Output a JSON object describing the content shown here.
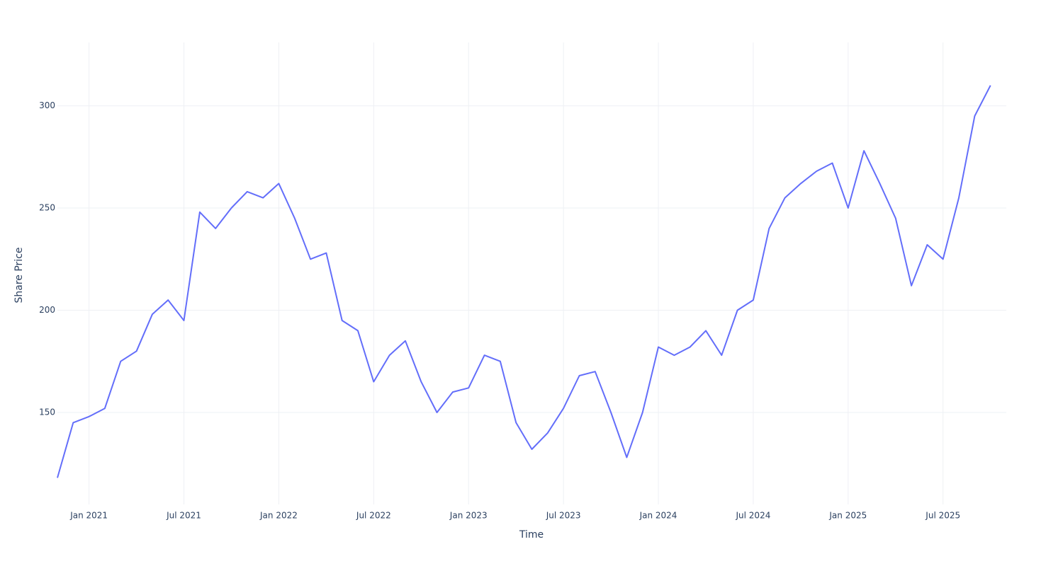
{
  "chart_data": {
    "type": "line",
    "x_label": "Time",
    "y_label": "Share Price",
    "x": [
      "2020-11",
      "2020-12",
      "2021-01",
      "2021-02",
      "2021-03",
      "2021-04",
      "2021-05",
      "2021-06",
      "2021-07",
      "2021-08",
      "2021-09",
      "2021-10",
      "2021-11",
      "2021-12",
      "2022-01",
      "2022-02",
      "2022-03",
      "2022-04",
      "2022-05",
      "2022-06",
      "2022-07",
      "2022-08",
      "2022-09",
      "2022-10",
      "2022-11",
      "2022-12",
      "2023-01",
      "2023-02",
      "2023-03",
      "2023-04",
      "2023-05",
      "2023-06",
      "2023-07",
      "2023-08",
      "2023-09",
      "2023-10",
      "2023-11",
      "2023-12",
      "2024-01",
      "2024-02",
      "2024-03",
      "2024-04",
      "2024-05",
      "2024-06",
      "2024-07",
      "2024-08",
      "2024-09",
      "2024-10",
      "2024-11",
      "2024-12",
      "2025-01",
      "2025-02",
      "2025-03",
      "2025-04",
      "2025-05",
      "2025-06",
      "2025-07",
      "2025-08",
      "2025-09",
      "2025-10"
    ],
    "series": [
      {
        "color": "#636efa",
        "values": [
          118,
          145,
          148,
          152,
          175,
          180,
          198,
          205,
          195,
          248,
          240,
          250,
          258,
          255,
          262,
          245,
          225,
          228,
          195,
          190,
          165,
          178,
          185,
          165,
          150,
          160,
          162,
          178,
          175,
          145,
          132,
          140,
          152,
          168,
          170,
          150,
          128,
          150,
          182,
          178,
          182,
          190,
          178,
          200,
          205,
          240,
          255,
          262,
          268,
          272,
          250,
          278,
          262,
          245,
          212,
          232,
          225,
          255,
          295,
          310
        ]
      }
    ],
    "xlim": [
      "2020-11",
      "2025-11"
    ],
    "xticks": [
      {
        "value": "2021-01",
        "label": "Jan 2021"
      },
      {
        "value": "2021-07",
        "label": "Jul 2021"
      },
      {
        "value": "2022-01",
        "label": "Jan 2022"
      },
      {
        "value": "2022-07",
        "label": "Jul 2022"
      },
      {
        "value": "2023-01",
        "label": "Jan 2023"
      },
      {
        "value": "2023-07",
        "label": "Jul 2023"
      },
      {
        "value": "2024-01",
        "label": "Jan 2024"
      },
      {
        "value": "2024-07",
        "label": "Jul 2024"
      },
      {
        "value": "2025-01",
        "label": "Jan 2025"
      },
      {
        "value": "2025-07",
        "label": "Jul 2025"
      }
    ],
    "ylim": [
      105,
      331
    ],
    "yticks": [
      150,
      200,
      250,
      300
    ],
    "grid": true
  }
}
